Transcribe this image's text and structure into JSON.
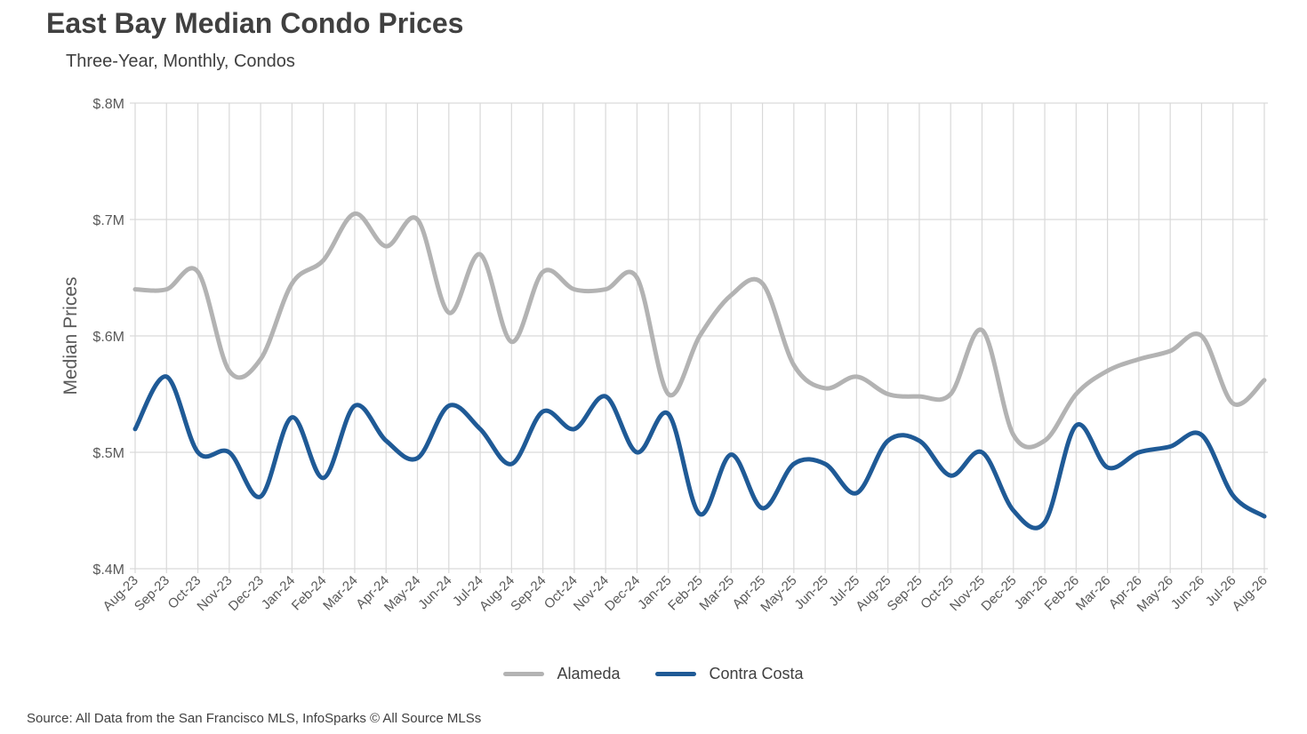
{
  "title": "East Bay Median Condo Prices",
  "subtitle": "Three-Year, Monthly, Condos",
  "source": "Source: All Data from the San Francisco MLS, InfoSparks © All Source MLSs",
  "chart_data": {
    "type": "line",
    "title": "East Bay Median Condo Prices",
    "subtitle": "Three-Year, Monthly, Condos",
    "ylabel": "Median Prices",
    "xlabel": "",
    "ylim": [
      0.4,
      0.8
    ],
    "y_ticks": [
      0.4,
      0.5,
      0.6,
      0.7,
      0.8
    ],
    "y_tick_labels": [
      "$.4M",
      "$.5M",
      "$.6M",
      "$.7M",
      "$.8M"
    ],
    "y_unit": "$M",
    "grid": true,
    "legend_position": "bottom-center",
    "categories": [
      "Aug-23",
      "Sep-23",
      "Oct-23",
      "Nov-23",
      "Dec-23",
      "Jan-24",
      "Feb-24",
      "Mar-24",
      "Apr-24",
      "May-24",
      "Jun-24",
      "Jul-24",
      "Aug-24",
      "Sep-24",
      "Oct-24",
      "Nov-24",
      "Dec-24",
      "Jan-25",
      "Feb-25",
      "Mar-25",
      "Apr-25",
      "May-25",
      "Jun-25",
      "Jul-25",
      "Aug-25",
      "Sep-25",
      "Oct-25",
      "Nov-25",
      "Dec-25",
      "Jan-26",
      "Feb-26",
      "Mar-26",
      "Apr-26",
      "May-26",
      "Jun-26",
      "Jul-26",
      "Aug-26"
    ],
    "x": [
      "Aug-23",
      "Sep-23",
      "Oct-23",
      "Nov-23",
      "Dec-23",
      "Jan-24",
      "Feb-24",
      "Mar-24",
      "Apr-24",
      "May-24",
      "Jun-24",
      "Jul-24",
      "Aug-24",
      "Sep-24",
      "Oct-24",
      "Nov-24",
      "Dec-24",
      "Jan-25",
      "Feb-25",
      "Mar-25",
      "Apr-25",
      "May-25",
      "Jun-25",
      "Jul-25",
      "Aug-25",
      "Sep-25",
      "Oct-25",
      "Nov-25",
      "Dec-25",
      "Jan-26",
      "Feb-26",
      "Mar-26",
      "Apr-26",
      "May-26",
      "Jun-26",
      "Jul-26",
      "Aug-26"
    ],
    "x_points": [
      "Aug-23",
      "Sep-23",
      "Oct-23",
      "Nov-23",
      "Dec-23",
      "Jan-24",
      "Feb-24",
      "Mar-24",
      "Apr-24",
      "May-24",
      "Jun-24",
      "Jul-24",
      "Aug-24",
      "Sep-24",
      "Oct-24",
      "Nov-24",
      "Dec-24",
      "Jan-25",
      "Feb-25",
      "Mar-25",
      "Apr-25",
      "May-25",
      "Jun-25",
      "Jul-25",
      "Aug-25",
      "Sep-25",
      "Oct-25",
      "Nov-25",
      "Dec-25",
      "Jan-26",
      "Feb-26",
      "Mar-26",
      "Apr-26",
      "May-26",
      "Jun-26",
      "Jul-26",
      "Aug-26"
    ],
    "series": [
      {
        "name": "Alameda",
        "color": "#B3B3B3",
        "values": [
          0.64,
          0.64,
          0.655,
          0.57,
          0.58,
          0.645,
          0.665,
          0.705,
          0.677,
          0.7,
          0.62,
          0.67,
          0.595,
          0.655,
          0.64,
          0.64,
          0.65,
          0.55,
          0.6,
          0.635,
          0.645,
          0.575,
          0.555,
          0.565,
          0.55,
          0.548,
          0.55,
          0.605,
          0.515,
          0.51,
          0.55,
          0.57,
          0.58,
          0.587,
          0.6,
          0.542,
          0.562
        ]
      },
      {
        "name": "Contra Costa",
        "color": "#1F5A96",
        "values": [
          0.52,
          0.565,
          0.5,
          0.5,
          0.462,
          0.53,
          0.478,
          0.54,
          0.51,
          0.495,
          0.54,
          0.52,
          0.49,
          0.535,
          0.52,
          0.548,
          0.5,
          0.533,
          0.447,
          0.498,
          0.452,
          0.49,
          0.49,
          0.465,
          0.51,
          0.51,
          0.48,
          0.5,
          0.45,
          0.44,
          0.523,
          0.487,
          0.5,
          0.505,
          0.515,
          0.463,
          0.445
        ]
      }
    ]
  }
}
